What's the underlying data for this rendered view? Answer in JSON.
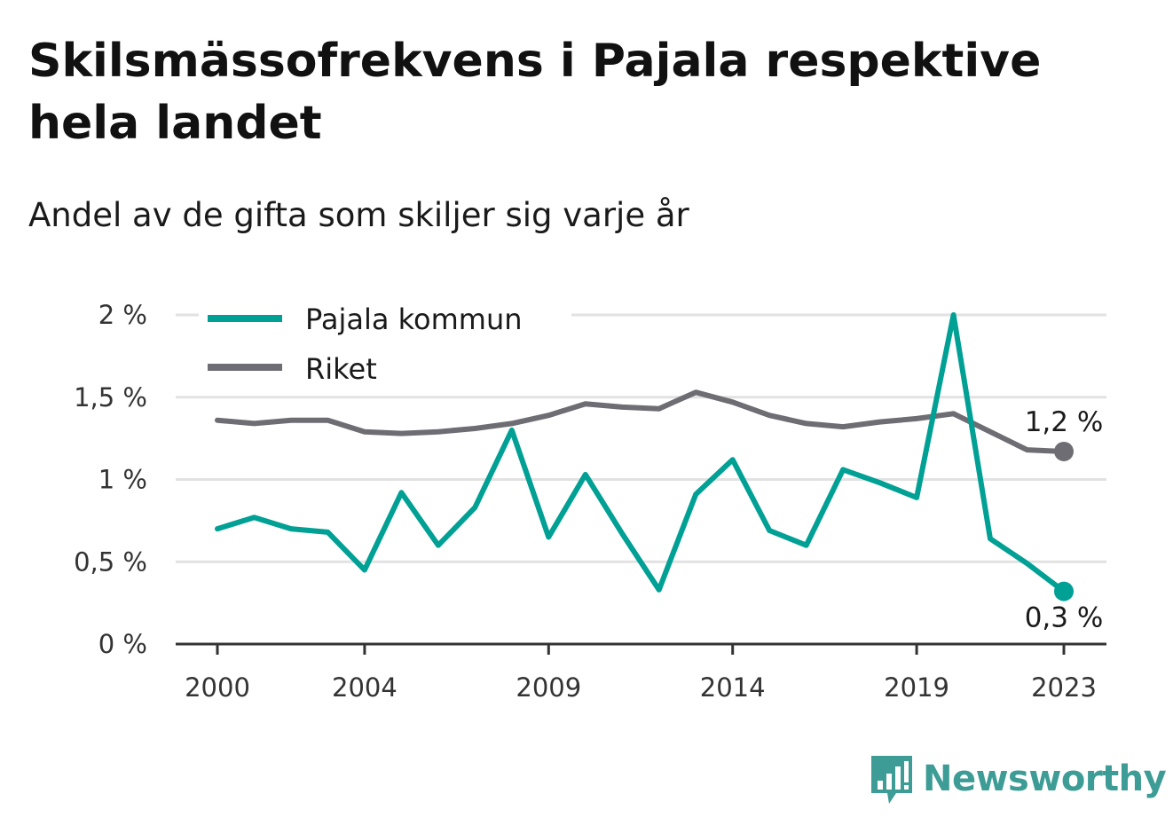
{
  "title": "Skilsmässofrekvens i Pajala respektive hela landet",
  "subtitle": "Andel av de gifta som skiljer sig varje år",
  "brand": {
    "name": "Newsworthy",
    "logo_icon": "newsworthy-chart-bubble-icon",
    "color": "#3d9c95"
  },
  "chart_data": {
    "type": "line",
    "title": "Skilsmässofrekvens i Pajala respektive hela landet",
    "subtitle": "Andel av de gifta som skiljer sig varje år",
    "x": [
      2000,
      2001,
      2002,
      2003,
      2004,
      2005,
      2006,
      2007,
      2008,
      2009,
      2010,
      2011,
      2012,
      2013,
      2014,
      2015,
      2016,
      2017,
      2018,
      2019,
      2020,
      2021,
      2022,
      2023
    ],
    "xlim": [
      2000,
      2023
    ],
    "x_ticks": [
      2000,
      2004,
      2009,
      2014,
      2019,
      2023
    ],
    "x_tick_labels": [
      "2000",
      "2004",
      "2009",
      "2014",
      "2019",
      "2023"
    ],
    "ylim": [
      0,
      2
    ],
    "y_ticks": [
      0,
      0.5,
      1,
      1.5,
      2
    ],
    "y_tick_labels": [
      "0 %",
      "0,5 %",
      "1 %",
      "1,5 %",
      "2 %"
    ],
    "grid": "horizontal",
    "legend_position": "top-left",
    "series": [
      {
        "name": "Pajala kommun",
        "color": "#00a095",
        "values": [
          0.7,
          0.77,
          0.7,
          0.68,
          0.45,
          0.92,
          0.6,
          0.83,
          1.3,
          0.65,
          1.03,
          0.67,
          0.33,
          0.91,
          1.12,
          0.69,
          0.6,
          1.06,
          0.98,
          0.89,
          2.0,
          0.64,
          0.49,
          0.32
        ],
        "end_label": "0,3 %",
        "end_label_position": "below"
      },
      {
        "name": "Riket",
        "color": "#6e6d73",
        "values": [
          1.36,
          1.34,
          1.36,
          1.36,
          1.29,
          1.28,
          1.29,
          1.31,
          1.34,
          1.39,
          1.46,
          1.44,
          1.43,
          1.53,
          1.47,
          1.39,
          1.34,
          1.32,
          1.35,
          1.37,
          1.4,
          1.29,
          1.18,
          1.17
        ],
        "end_label": "1,2 %",
        "end_label_position": "above"
      }
    ]
  }
}
